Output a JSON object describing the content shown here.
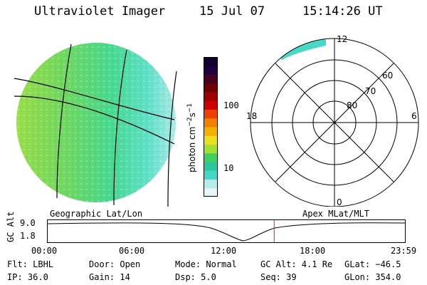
{
  "header": {
    "instrument": "Ultraviolet Imager",
    "date": "15 Jul 07",
    "time": "15:14:26 UT"
  },
  "colorbar": {
    "unit_label": "photon cm",
    "unit_exp1": "−2",
    "unit_mid": "s",
    "unit_exp2": "−1",
    "ticks": [
      "100",
      "10"
    ],
    "colors": [
      "#e8f4f8",
      "#b4ecec",
      "#40d8c8",
      "#28c8a0",
      "#40d060",
      "#a0e030",
      "#e8e020",
      "#f8b000",
      "#f08000",
      "#f04000",
      "#d00000",
      "#a00000",
      "#700000",
      "#480020",
      "#200040",
      "#100030"
    ]
  },
  "polar": {
    "mlt_labels": [
      "12",
      "18",
      "6",
      "0"
    ],
    "lat_labels": [
      "60",
      "70",
      "80"
    ]
  },
  "timeline": {
    "left_label": "Geographic Lat/Lon",
    "right_label": "Apex MLat/MLT",
    "axis_title": "GC Alt",
    "y_top": "9.0",
    "y_bottom": "1.8",
    "x_ticks": [
      "00:00",
      "06:00",
      "12:00",
      "18:00",
      "23:59"
    ],
    "current_time_fraction": 0.634,
    "marker_color": "#e02020"
  },
  "footer": {
    "row1": [
      "Flt: LBHL",
      "Door: Open",
      "Mode: Normal",
      "GC Alt: 4.1 Re",
      "GLat: −46.5"
    ],
    "row2": [
      "IP: 36.0",
      "Gain: 14",
      "Dsp:    5.0",
      "Seq: 39",
      "GLon: 354.0"
    ]
  }
}
